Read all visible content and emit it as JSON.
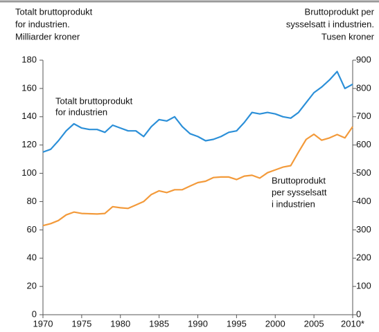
{
  "chart_data": {
    "type": "line",
    "y_label_lines": [
      "Totalt bruttoprodukt",
      "for industrien.",
      "Milliarder kroner"
    ],
    "y2_label_lines": [
      "Bruttoprodukt per",
      "sysselsatt i industrien.",
      "Tusen kroner"
    ],
    "x": [
      1970,
      1971,
      1972,
      1973,
      1974,
      1975,
      1976,
      1977,
      1978,
      1979,
      1980,
      1981,
      1982,
      1983,
      1984,
      1985,
      1986,
      1987,
      1988,
      1989,
      1990,
      1991,
      1992,
      1993,
      1994,
      1995,
      1996,
      1997,
      1998,
      1999,
      2000,
      2001,
      2002,
      2003,
      2004,
      2005,
      2006,
      2007,
      2008,
      2009,
      2010
    ],
    "xlim": [
      1970,
      2010
    ],
    "xticks": [
      1970,
      1975,
      1980,
      1985,
      1990,
      1995,
      2000,
      2005,
      {
        "value": 2010,
        "label": "2010*"
      }
    ],
    "ylim": [
      0,
      180
    ],
    "yticks": [
      0,
      20,
      40,
      60,
      80,
      100,
      120,
      140,
      160,
      180
    ],
    "y2lim": [
      0,
      900
    ],
    "y2ticks": [
      0,
      100,
      200,
      300,
      400,
      500,
      600,
      700,
      800,
      900
    ],
    "series": [
      {
        "label_lines": [
          "Totalt bruttoprodukt",
          "for industrien"
        ],
        "color": "#2b8fd8",
        "axis": "y",
        "values": [
          115,
          117,
          123,
          130,
          135,
          132,
          131,
          131,
          129,
          134,
          132,
          130,
          130,
          126,
          133,
          138,
          137,
          140,
          133,
          128,
          126,
          123,
          124,
          126,
          129,
          130,
          136,
          143,
          142,
          143,
          142,
          140,
          139,
          143,
          150,
          157,
          161,
          166,
          172,
          160,
          163
        ]
      },
      {
        "label_lines": [
          "Bruttoprodukt",
          "per sysselsatt",
          "i industrien"
        ],
        "color": "#f39a3a",
        "axis": "y2",
        "values": [
          315,
          322,
          333,
          353,
          363,
          358,
          357,
          356,
          358,
          382,
          378,
          376,
          388,
          400,
          425,
          438,
          432,
          442,
          442,
          455,
          467,
          472,
          485,
          487,
          487,
          478,
          490,
          493,
          483,
          502,
          512,
          522,
          527,
          575,
          620,
          638,
          617,
          625,
          637,
          625,
          665
        ]
      }
    ]
  }
}
